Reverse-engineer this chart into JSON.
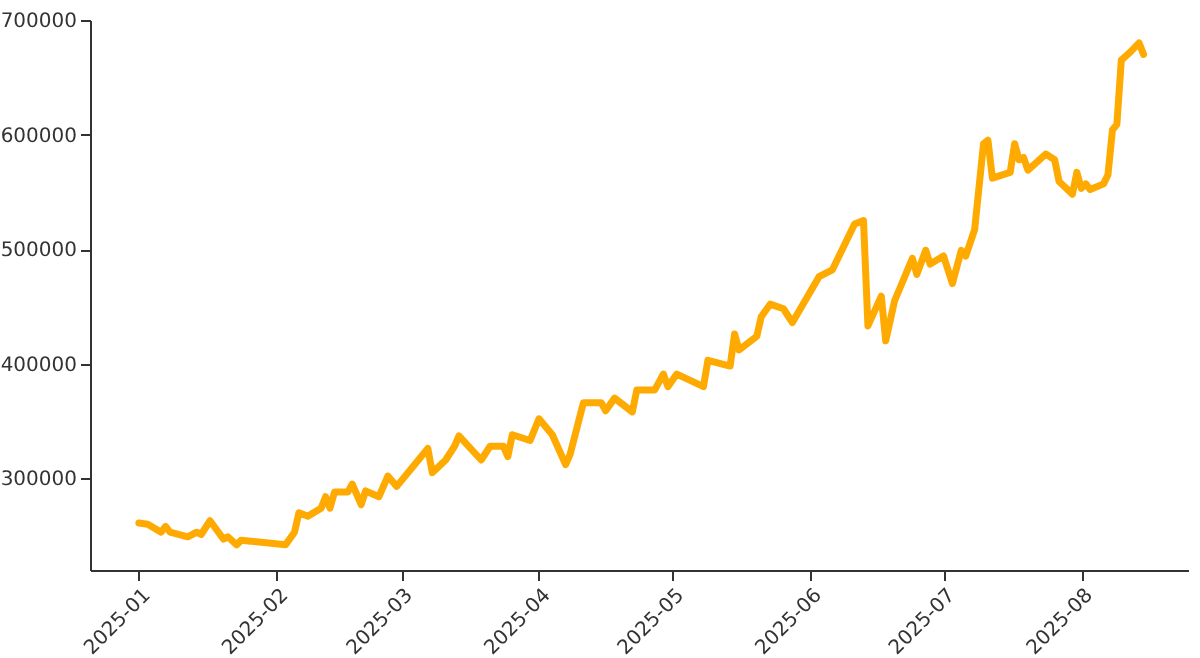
{
  "chart_data": {
    "type": "line",
    "x": [
      "2025-01-01",
      "2025-01-03",
      "2025-01-06",
      "2025-01-07",
      "2025-01-08",
      "2025-01-12",
      "2025-01-14",
      "2025-01-15",
      "2025-01-17",
      "2025-01-20",
      "2025-01-21",
      "2025-01-23",
      "2025-01-24",
      "2025-02-03",
      "2025-02-05",
      "2025-02-06",
      "2025-02-08",
      "2025-02-11",
      "2025-02-12",
      "2025-02-13",
      "2025-02-14",
      "2025-02-17",
      "2025-02-18",
      "2025-02-20",
      "2025-02-21",
      "2025-02-24",
      "2025-02-26",
      "2025-02-28",
      "2025-03-07",
      "2025-03-08",
      "2025-03-11",
      "2025-03-13",
      "2025-03-14",
      "2025-03-19",
      "2025-03-21",
      "2025-03-24",
      "2025-03-25",
      "2025-03-26",
      "2025-03-30",
      "2025-04-01",
      "2025-04-04",
      "2025-04-07",
      "2025-04-08",
      "2025-04-11",
      "2025-04-15",
      "2025-04-16",
      "2025-04-18",
      "2025-04-22",
      "2025-04-23",
      "2025-04-27",
      "2025-04-29",
      "2025-04-30",
      "2025-05-02",
      "2025-05-08",
      "2025-05-09",
      "2025-05-14",
      "2025-05-15",
      "2025-05-16",
      "2025-05-20",
      "2025-05-21",
      "2025-05-23",
      "2025-05-26",
      "2025-05-28",
      "2025-06-03",
      "2025-06-06",
      "2025-06-11",
      "2025-06-13",
      "2025-06-14",
      "2025-06-17",
      "2025-06-18",
      "2025-06-20",
      "2025-06-24",
      "2025-06-25",
      "2025-06-27",
      "2025-06-28",
      "2025-07-01",
      "2025-07-03",
      "2025-07-05",
      "2025-07-06",
      "2025-07-08",
      "2025-07-10",
      "2025-07-11",
      "2025-07-12",
      "2025-07-16",
      "2025-07-17",
      "2025-07-18",
      "2025-07-19",
      "2025-07-20",
      "2025-07-24",
      "2025-07-26",
      "2025-07-27",
      "2025-07-30",
      "2025-07-31",
      "2025-08-01",
      "2025-08-02",
      "2025-08-03",
      "2025-08-06",
      "2025-08-07",
      "2025-08-08",
      "2025-08-09",
      "2025-08-10",
      "2025-08-12",
      "2025-08-14",
      "2025-08-15"
    ],
    "series": [
      {
        "color": "#ffaa00",
        "values": [
          261000,
          260000,
          253000,
          258000,
          253000,
          249000,
          253000,
          251000,
          263000,
          247000,
          249000,
          242000,
          246000,
          242000,
          253000,
          270000,
          267000,
          274000,
          284000,
          274000,
          288000,
          288000,
          295000,
          277000,
          289000,
          284000,
          302000,
          293000,
          326000,
          305000,
          316000,
          328000,
          337000,
          316000,
          328000,
          328000,
          319000,
          338000,
          333000,
          352000,
          338000,
          312000,
          321000,
          366000,
          366000,
          359000,
          370000,
          358000,
          377000,
          377000,
          391000,
          380000,
          391000,
          380000,
          403000,
          398000,
          426000,
          412000,
          424000,
          441000,
          452000,
          448000,
          436000,
          476000,
          482000,
          522000,
          525000,
          433000,
          459000,
          420000,
          455000,
          492000,
          478000,
          499000,
          487000,
          494000,
          470000,
          499000,
          494000,
          517000,
          592000,
          595000,
          562000,
          567000,
          592000,
          578000,
          580000,
          569000,
          583000,
          578000,
          559000,
          548000,
          567000,
          553000,
          557000,
          552000,
          557000,
          565000,
          604000,
          609000,
          665000,
          672000,
          680000,
          670000
        ]
      }
    ],
    "xlim": [
      "2024-12-21",
      "2025-08-25"
    ],
    "xticks": [
      "2025-01",
      "2025-02",
      "2025-03",
      "2025-04",
      "2025-05",
      "2025-06",
      "2025-07",
      "2025-08"
    ],
    "ylim": [
      220000,
      700000
    ],
    "yticks": [
      300000,
      400000,
      500000,
      600000,
      700000
    ],
    "grid": false,
    "marker": "none",
    "line_style": "solid"
  }
}
